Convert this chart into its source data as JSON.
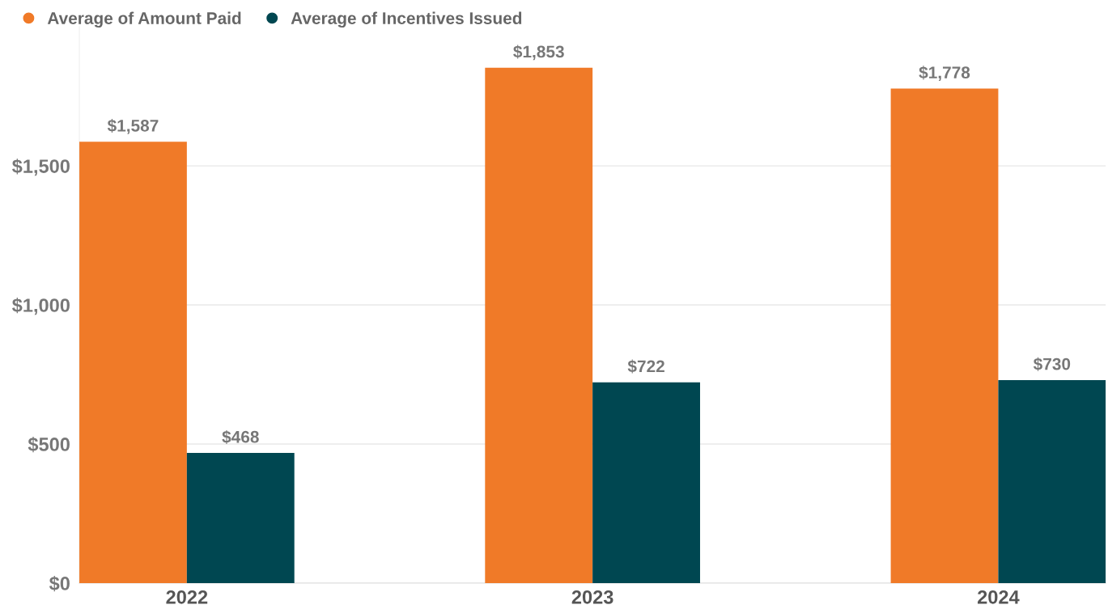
{
  "chart_data": {
    "type": "bar",
    "categories": [
      "2022",
      "2023",
      "2024"
    ],
    "series": [
      {
        "name": "Average of Amount Paid",
        "color": "#f07a28",
        "values": [
          1587,
          1853,
          1778
        ],
        "value_labels": [
          "$1,587",
          "$1,853",
          "$1,778"
        ]
      },
      {
        "name": "Average of Incentives Issued",
        "color": "#004751",
        "values": [
          468,
          722,
          730
        ],
        "value_labels": [
          "$468",
          "$722",
          "$730"
        ]
      }
    ],
    "ylim": [
      0,
      2000
    ],
    "yticks": [
      {
        "value": 0,
        "label": "$0"
      },
      {
        "value": 500,
        "label": "$500"
      },
      {
        "value": 1000,
        "label": "$1,000"
      },
      {
        "value": 1500,
        "label": "$1,500"
      }
    ],
    "grid": "y",
    "legend": "top left",
    "marker": "circle"
  }
}
